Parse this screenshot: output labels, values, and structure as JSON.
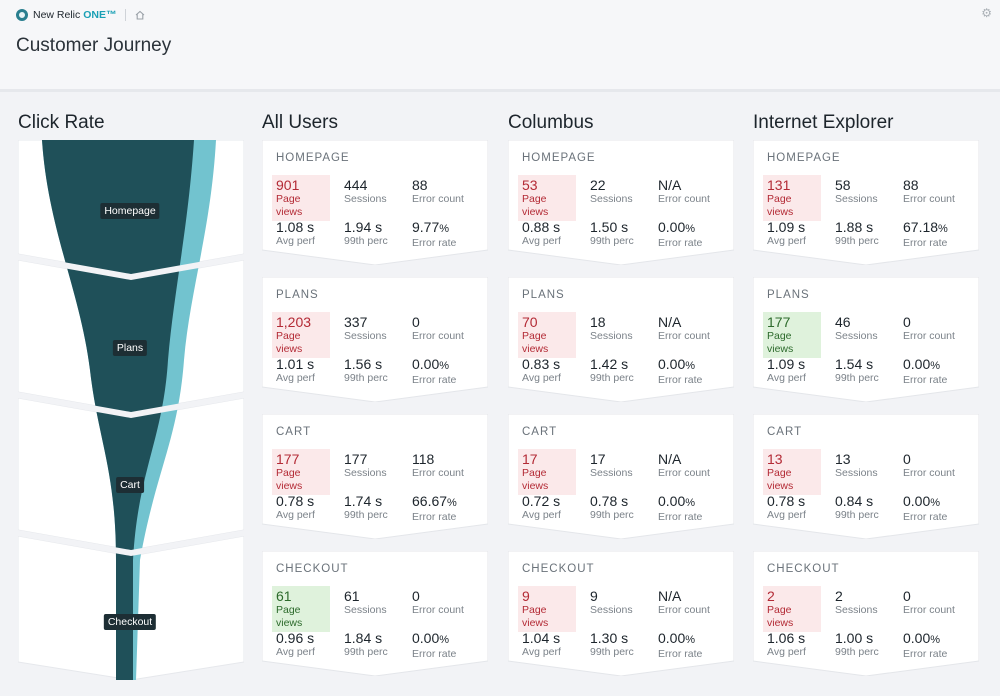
{
  "app": {
    "brand": "New Relic",
    "brand_suffix": "ONE™",
    "page_title": "Customer Journey"
  },
  "colors": {
    "funnel_dark": "#1f5059",
    "funnel_light": "#72c3cf",
    "highlight_red": "#fbe9ea",
    "highlight_green": "#dff2dc"
  },
  "icons": {
    "brand": "new-relic-logo",
    "home": "home-icon",
    "settings": "gear-icon"
  },
  "funnel": {
    "title": "Click Rate",
    "stages": [
      "Homepage",
      "Plans",
      "Cart",
      "Checkout"
    ]
  },
  "columns": [
    {
      "title": "All Users",
      "cards": [
        {
          "stage": "HOMEPAGE",
          "page_views": "901",
          "pv_highlight": "red",
          "sessions": "444",
          "error_count": "88",
          "avg_perf": "1.08 s",
          "p99": "1.94 s",
          "error_rate": "9.77",
          "pct": "%"
        },
        {
          "stage": "PLANS",
          "page_views": "1,203",
          "pv_highlight": "red",
          "sessions": "337",
          "error_count": "0",
          "avg_perf": "1.01 s",
          "p99": "1.56 s",
          "error_rate": "0.00",
          "pct": "%"
        },
        {
          "stage": "CART",
          "page_views": "177",
          "pv_highlight": "red",
          "sessions": "177",
          "error_count": "118",
          "avg_perf": "0.78 s",
          "p99": "1.74 s",
          "error_rate": "66.67",
          "pct": "%"
        },
        {
          "stage": "CHECKOUT",
          "page_views": "61",
          "pv_highlight": "green",
          "sessions": "61",
          "error_count": "0",
          "avg_perf": "0.96 s",
          "p99": "1.84 s",
          "error_rate": "0.00",
          "pct": "%"
        }
      ]
    },
    {
      "title": "Columbus",
      "cards": [
        {
          "stage": "HOMEPAGE",
          "page_views": "53",
          "pv_highlight": "red",
          "sessions": "22",
          "error_count": "N/A",
          "avg_perf": "0.88 s",
          "p99": "1.50 s",
          "error_rate": "0.00",
          "pct": "%"
        },
        {
          "stage": "PLANS",
          "page_views": "70",
          "pv_highlight": "red",
          "sessions": "18",
          "error_count": "N/A",
          "avg_perf": "0.83 s",
          "p99": "1.42 s",
          "error_rate": "0.00",
          "pct": "%"
        },
        {
          "stage": "CART",
          "page_views": "17",
          "pv_highlight": "red",
          "sessions": "17",
          "error_count": "N/A",
          "avg_perf": "0.72 s",
          "p99": "0.78 s",
          "error_rate": "0.00",
          "pct": "%"
        },
        {
          "stage": "CHECKOUT",
          "page_views": "9",
          "pv_highlight": "red",
          "sessions": "9",
          "error_count": "N/A",
          "avg_perf": "1.04 s",
          "p99": "1.30 s",
          "error_rate": "0.00",
          "pct": "%"
        }
      ]
    },
    {
      "title": "Internet Explorer",
      "cards": [
        {
          "stage": "HOMEPAGE",
          "page_views": "131",
          "pv_highlight": "red",
          "sessions": "58",
          "error_count": "88",
          "avg_perf": "1.09 s",
          "p99": "1.88 s",
          "error_rate": "67.18",
          "pct": "%"
        },
        {
          "stage": "PLANS",
          "page_views": "177",
          "pv_highlight": "green",
          "sessions": "46",
          "error_count": "0",
          "avg_perf": "1.09 s",
          "p99": "1.54 s",
          "error_rate": "0.00",
          "pct": "%"
        },
        {
          "stage": "CART",
          "page_views": "13",
          "pv_highlight": "red",
          "sessions": "13",
          "error_count": "0",
          "avg_perf": "0.78 s",
          "p99": "0.84 s",
          "error_rate": "0.00",
          "pct": "%"
        },
        {
          "stage": "CHECKOUT",
          "page_views": "2",
          "pv_highlight": "red",
          "sessions": "2",
          "error_count": "0",
          "avg_perf": "1.06 s",
          "p99": "1.00 s",
          "error_rate": "0.00",
          "pct": "%"
        }
      ]
    }
  ],
  "labels": {
    "page_views": "Page views",
    "sessions": "Sessions",
    "error_count": "Error count",
    "avg_perf": "Avg perf",
    "p99": "99th perc",
    "error_rate": "Error rate"
  }
}
